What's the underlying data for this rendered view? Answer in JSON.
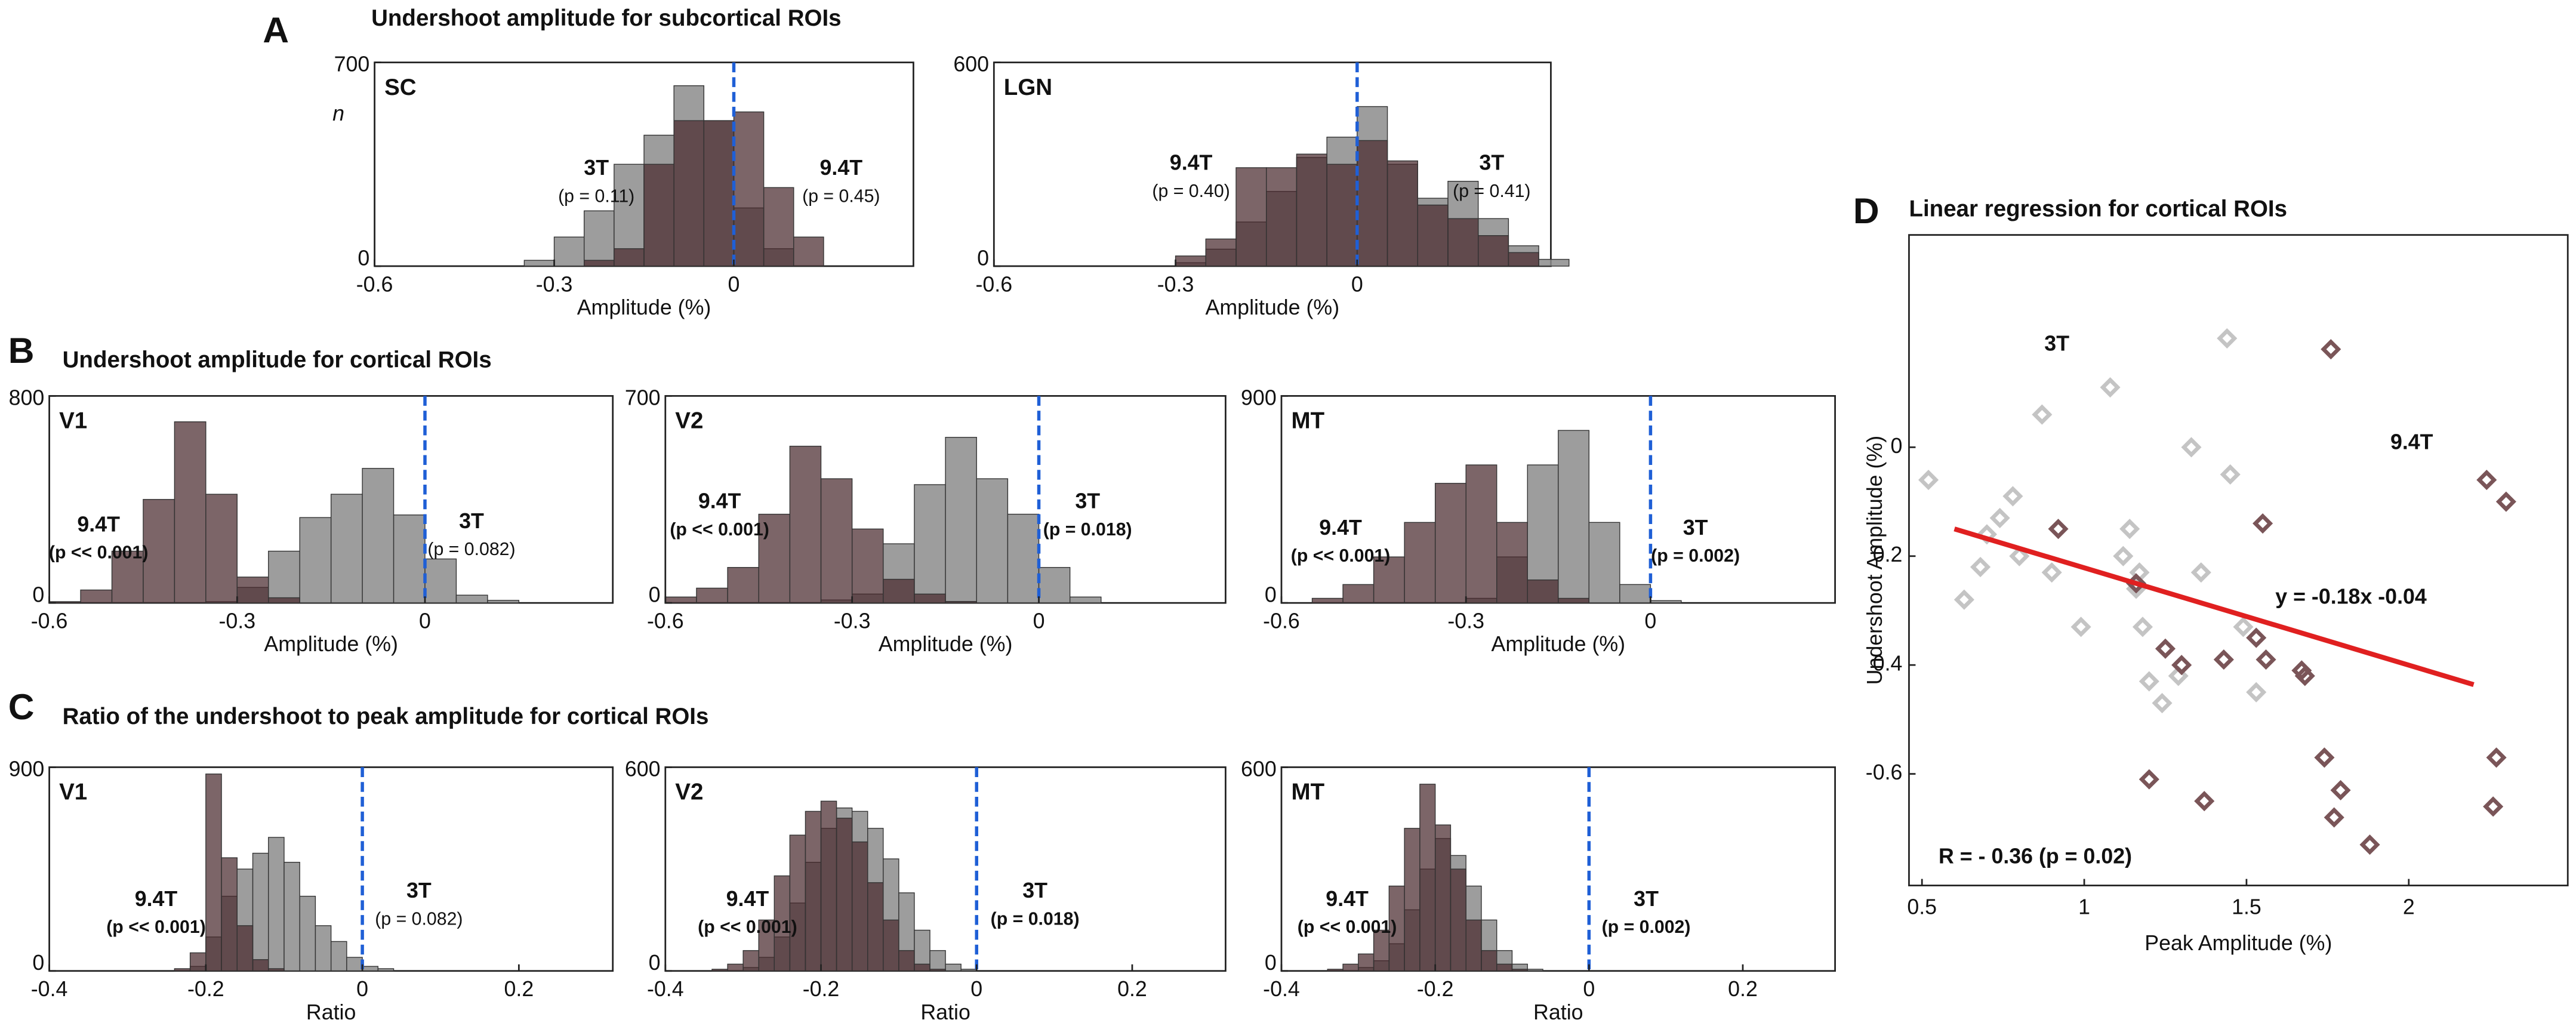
{
  "panels": [
    {
      "letter": "A",
      "title": "Undershoot amplitude for subcortical ROIs"
    },
    {
      "letter": "B",
      "title": "Undershoot amplitude for cortical ROIs"
    },
    {
      "letter": "C",
      "title": "Ratio of the undershoot to peak amplitude for cortical ROIs"
    },
    {
      "letter": "D",
      "title": "Linear regression for cortical ROIs"
    }
  ],
  "chart_data": [
    {
      "type": "histogram",
      "title": "SC",
      "xlabel": "Amplitude (%)",
      "ylabel": "n",
      "bins": [
        -0.35,
        -0.3,
        -0.25,
        -0.2,
        -0.15,
        -0.1,
        -0.05,
        0,
        0.05,
        0.1,
        0.15
      ],
      "series": [
        {
          "name": "3T",
          "color": "#8c8c8c",
          "note": "(p = 0.11)",
          "note_color": "#555555",
          "values": [
            20,
            100,
            190,
            350,
            450,
            620,
            500,
            200,
            60,
            0
          ]
        },
        {
          "name": "9.4T",
          "color": "#4a2a2e",
          "note": "(p = 0.45)",
          "note_color": "#4a2a2e",
          "values": [
            0,
            0,
            20,
            60,
            350,
            500,
            500,
            530,
            270,
            100
          ]
        }
      ],
      "xlim": [
        -0.6,
        0.3
      ],
      "xticks": [
        -0.6,
        -0.3,
        0
      ],
      "ylim": [
        0,
        700
      ],
      "yticks": [
        0,
        700
      ],
      "vline": 0,
      "vline_color": "#1f5fd6"
    },
    {
      "type": "histogram",
      "title": "LGN",
      "xlabel": "Amplitude (%)",
      "bins": [
        -0.3,
        -0.25,
        -0.2,
        -0.15,
        -0.1,
        -0.05,
        0,
        0.05,
        0.1,
        0.15,
        0.2,
        0.25,
        0.3,
        0.35
      ],
      "series": [
        {
          "name": "3T",
          "color": "#8c8c8c",
          "note": "(p = 0.41)",
          "note_color": "#555555",
          "values": [
            10,
            50,
            130,
            220,
            320,
            380,
            470,
            300,
            200,
            250,
            140,
            60,
            20
          ]
        },
        {
          "name": "9.4T",
          "color": "#4a2a2e",
          "note": "(p = 0.40)",
          "note_color": "#4a2a2e",
          "values": [
            30,
            80,
            290,
            290,
            330,
            300,
            370,
            310,
            180,
            140,
            90,
            40,
            0
          ]
        }
      ],
      "xlim": [
        -0.6,
        0.32
      ],
      "xticks": [
        -0.6,
        -0.3,
        0
      ],
      "ylim": [
        0,
        600
      ],
      "yticks": [
        0,
        600
      ],
      "vline": 0,
      "vline_color": "#1f5fd6"
    },
    {
      "type": "histogram",
      "title": "V1",
      "xlabel": "Amplitude (%)",
      "bins": [
        -0.6,
        -0.55,
        -0.5,
        -0.45,
        -0.4,
        -0.35,
        -0.3,
        -0.25,
        -0.2,
        -0.15,
        -0.1,
        -0.05,
        0,
        0.05,
        0.1,
        0.15
      ],
      "series": [
        {
          "name": "3T",
          "color": "#8c8c8c",
          "note": "(p = 0.082)",
          "note_color": "#555555",
          "values": [
            0,
            0,
            0,
            0,
            0,
            5,
            60,
            200,
            330,
            420,
            520,
            340,
            170,
            30,
            10
          ]
        },
        {
          "name": "9.4T",
          "color": "#4a2a2e",
          "note": "(p << 0.001)",
          "note_color": "#c00000",
          "values": [
            5,
            50,
            200,
            400,
            700,
            420,
            100,
            20,
            0,
            0,
            0,
            0,
            0,
            0,
            0
          ]
        }
      ],
      "xlim": [
        -0.6,
        0.3
      ],
      "xticks": [
        -0.6,
        -0.3,
        0
      ],
      "ylim": [
        0,
        800
      ],
      "yticks": [
        0,
        800
      ],
      "vline": 0,
      "vline_color": "#1f5fd6"
    },
    {
      "type": "histogram",
      "title": "V2",
      "xlabel": "Amplitude (%)",
      "bins": [
        -0.6,
        -0.55,
        -0.5,
        -0.45,
        -0.4,
        -0.35,
        -0.3,
        -0.25,
        -0.2,
        -0.15,
        -0.1,
        -0.05,
        0,
        0.05,
        0.1,
        0.15
      ],
      "series": [
        {
          "name": "3T",
          "color": "#8c8c8c",
          "note": "(p = 0.018)",
          "note_color": "#c00000",
          "values": [
            0,
            0,
            0,
            0,
            0,
            10,
            30,
            200,
            400,
            560,
            420,
            300,
            120,
            20,
            0
          ]
        },
        {
          "name": "9.4T",
          "color": "#4a2a2e",
          "note": "(p << 0.001)",
          "note_color": "#c00000",
          "values": [
            20,
            50,
            120,
            300,
            530,
            420,
            250,
            80,
            30,
            5,
            0,
            0,
            0,
            0,
            0
          ]
        }
      ],
      "xlim": [
        -0.6,
        0.3
      ],
      "xticks": [
        -0.6,
        -0.3,
        0
      ],
      "ylim": [
        0,
        700
      ],
      "yticks": [
        0,
        700
      ],
      "vline": 0,
      "vline_color": "#1f5fd6"
    },
    {
      "type": "histogram",
      "title": "MT",
      "xlabel": "Amplitude (%)",
      "bins": [
        -0.6,
        -0.55,
        -0.5,
        -0.45,
        -0.4,
        -0.35,
        -0.3,
        -0.25,
        -0.2,
        -0.15,
        -0.1,
        -0.05,
        0,
        0.05,
        0.1,
        0.15
      ],
      "series": [
        {
          "name": "3T",
          "color": "#8c8c8c",
          "note": "(p = 0.002)",
          "note_color": "#c00000",
          "values": [
            0,
            0,
            0,
            0,
            0,
            0,
            20,
            200,
            600,
            750,
            350,
            80,
            10,
            0,
            0
          ]
        },
        {
          "name": "9.4T",
          "color": "#4a2a2e",
          "note": "(p << 0.001)",
          "note_color": "#c00000",
          "values": [
            0,
            20,
            80,
            200,
            350,
            520,
            600,
            350,
            100,
            20,
            0,
            0,
            0,
            0,
            0
          ]
        }
      ],
      "xlim": [
        -0.6,
        0.3
      ],
      "xticks": [
        -0.6,
        -0.3,
        0
      ],
      "ylim": [
        0,
        900
      ],
      "yticks": [
        0,
        900
      ],
      "vline": 0,
      "vline_color": "#1f5fd6"
    },
    {
      "type": "histogram",
      "title": "V1",
      "xlabel": "Ratio",
      "bins": [
        -0.3,
        -0.28,
        -0.26,
        -0.24,
        -0.22,
        -0.2,
        -0.18,
        -0.16,
        -0.14,
        -0.12,
        -0.1,
        -0.08,
        -0.06,
        -0.04,
        -0.02,
        0,
        0.02,
        0.04,
        0.06,
        0.08,
        0.1,
        0.12
      ],
      "series": [
        {
          "name": "3T",
          "color": "#8c8c8c",
          "note": "(p = 0.082)",
          "note_color": "#555555",
          "values": [
            0,
            0,
            0,
            0,
            20,
            150,
            330,
            450,
            520,
            590,
            480,
            330,
            200,
            130,
            60,
            20,
            10,
            0,
            0,
            0,
            0
          ]
        },
        {
          "name": "9.4T",
          "color": "#4a2a2e",
          "note": "(p << 0.001)",
          "note_color": "#c00000",
          "values": [
            0,
            0,
            0,
            10,
            80,
            870,
            500,
            200,
            50,
            10,
            0,
            0,
            0,
            0,
            0,
            0,
            0,
            0,
            0,
            0,
            0
          ]
        }
      ],
      "xlim": [
        -0.4,
        0.32
      ],
      "xticks": [
        -0.4,
        -0.2,
        0,
        0.2
      ],
      "ylim": [
        0,
        900
      ],
      "yticks": [
        0,
        900
      ],
      "vline": 0,
      "vline_color": "#1f5fd6"
    },
    {
      "type": "histogram",
      "title": "V2",
      "xlabel": "Ratio",
      "bins": [
        -0.34,
        -0.32,
        -0.3,
        -0.28,
        -0.26,
        -0.24,
        -0.22,
        -0.2,
        -0.18,
        -0.16,
        -0.14,
        -0.12,
        -0.1,
        -0.08,
        -0.06,
        -0.04,
        -0.02,
        0,
        0.02,
        0.04,
        0.06,
        0.08,
        0.1
      ],
      "series": [
        {
          "name": "3T",
          "color": "#8c8c8c",
          "note": "(p = 0.018)",
          "note_color": "#c00000",
          "values": [
            0,
            0,
            10,
            40,
            100,
            200,
            320,
            420,
            480,
            470,
            420,
            330,
            230,
            120,
            60,
            20,
            5,
            0,
            0,
            0,
            0,
            0
          ]
        },
        {
          "name": "9.4T",
          "color": "#4a2a2e",
          "note": "(p << 0.001)",
          "note_color": "#c00000",
          "values": [
            5,
            20,
            60,
            150,
            280,
            400,
            470,
            500,
            450,
            380,
            260,
            150,
            60,
            20,
            5,
            0,
            0,
            0,
            0,
            0,
            0,
            0
          ]
        }
      ],
      "xlim": [
        -0.4,
        0.32
      ],
      "xticks": [
        -0.4,
        -0.2,
        0,
        0.2
      ],
      "ylim": [
        0,
        600
      ],
      "yticks": [
        0,
        600
      ],
      "vline": 0,
      "vline_color": "#1f5fd6"
    },
    {
      "type": "histogram",
      "title": "MT",
      "xlabel": "Ratio",
      "bins": [
        -0.34,
        -0.32,
        -0.3,
        -0.28,
        -0.26,
        -0.24,
        -0.22,
        -0.2,
        -0.18,
        -0.16,
        -0.14,
        -0.12,
        -0.1,
        -0.08,
        -0.06,
        -0.04,
        -0.02,
        0,
        0.02,
        0.04,
        0.06,
        0.08,
        0.1
      ],
      "series": [
        {
          "name": "3T",
          "color": "#8c8c8c",
          "note": "(p = 0.002)",
          "note_color": "#c00000",
          "values": [
            0,
            0,
            10,
            30,
            80,
            180,
            300,
            390,
            340,
            250,
            150,
            60,
            20,
            5,
            0,
            0,
            0,
            0,
            0,
            0,
            0,
            0
          ]
        },
        {
          "name": "9.4T",
          "color": "#4a2a2e",
          "note": "(p << 0.001)",
          "note_color": "#c00000",
          "values": [
            5,
            20,
            50,
            120,
            250,
            420,
            550,
            430,
            300,
            150,
            60,
            20,
            5,
            0,
            0,
            0,
            0,
            0,
            0,
            0,
            0,
            0
          ]
        }
      ],
      "xlim": [
        -0.4,
        0.32
      ],
      "xticks": [
        -0.4,
        -0.2,
        0,
        0.2
      ],
      "ylim": [
        0,
        600
      ],
      "yticks": [
        0,
        600
      ],
      "vline": 0,
      "vline_color": "#1f5fd6"
    },
    {
      "type": "scatter",
      "xlabel": "Peak Amplitude (%)",
      "ylabel": "Undershoot Amplitude (%)",
      "series": [
        {
          "name": "3T",
          "color": "#c4c4c4",
          "x": [
            0.52,
            0.63,
            0.68,
            0.7,
            0.74,
            0.78,
            0.8,
            0.87,
            0.9,
            0.99,
            1.08,
            1.12,
            1.14,
            1.17,
            1.16,
            1.18,
            1.2,
            1.24,
            1.29,
            1.33,
            1.36,
            1.44,
            1.45,
            1.49,
            1.53
          ],
          "values": [
            -0.06,
            -0.28,
            -0.22,
            -0.16,
            -0.13,
            -0.09,
            -0.2,
            0.06,
            -0.23,
            -0.33,
            0.11,
            -0.2,
            -0.15,
            -0.23,
            -0.26,
            -0.33,
            -0.43,
            -0.47,
            -0.42,
            0,
            -0.23,
            0.2,
            -0.05,
            -0.33,
            -0.45
          ]
        },
        {
          "name": "9.4T",
          "color": "#7a5558",
          "x": [
            0.92,
            1.16,
            1.2,
            1.25,
            1.3,
            1.37,
            1.43,
            1.53,
            1.55,
            1.56,
            1.67,
            1.68,
            1.74,
            1.76,
            1.77,
            1.79,
            1.88,
            2.24,
            2.26,
            2.27,
            2.3
          ],
          "values": [
            -0.15,
            -0.25,
            -0.61,
            -0.37,
            -0.4,
            -0.65,
            -0.39,
            -0.35,
            -0.14,
            -0.39,
            -0.41,
            -0.42,
            -0.57,
            0.18,
            -0.68,
            -0.63,
            -0.73,
            -0.06,
            -0.66,
            -0.57,
            -0.1
          ]
        }
      ],
      "fit": {
        "x": [
          0.6,
          2.2
        ],
        "y": [
          -0.15,
          -0.436
        ],
        "color": "#e02020",
        "label": "y = -0.18x -0.04"
      },
      "annotation": {
        "text": "R = - 0.36 (p = 0.02)",
        "color": "#b01818"
      },
      "xlim": [
        0.46,
        2.49
      ],
      "xticks": [
        0.5,
        1,
        1.5,
        2
      ],
      "ylim": [
        -0.805,
        0.39
      ],
      "yticks": [
        0,
        {
          "value": -0.2,
          "label": "0.2"
        },
        {
          "value": -0.4,
          "label": "0.4"
        },
        -0.6
      ]
    }
  ]
}
